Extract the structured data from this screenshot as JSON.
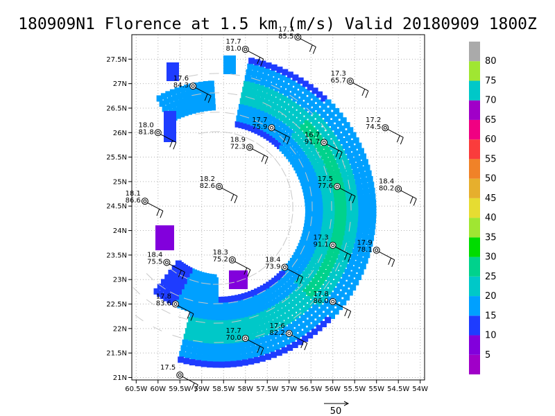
{
  "title": "180909N1 Florence at 1.5 km (m/s) Valid 20180909  1800Z",
  "map": {
    "lon_range": [
      -60.6,
      -53.9
    ],
    "lat_range": [
      20.95,
      28.0
    ],
    "x_ticks": [
      {
        "lon": -60.5,
        "label": "60.5W"
      },
      {
        "lon": -60.0,
        "label": "60W"
      },
      {
        "lon": -59.5,
        "label": "59.5W"
      },
      {
        "lon": -59.0,
        "label": "59W"
      },
      {
        "lon": -58.5,
        "label": "58.5W"
      },
      {
        "lon": -58.0,
        "label": "58W"
      },
      {
        "lon": -57.5,
        "label": "57.5W"
      },
      {
        "lon": -57.0,
        "label": "57W"
      },
      {
        "lon": -56.5,
        "label": "56.5W"
      },
      {
        "lon": -56.0,
        "label": "56W"
      },
      {
        "lon": -55.5,
        "label": "55.5W"
      },
      {
        "lon": -55.0,
        "label": "55W"
      },
      {
        "lon": -54.5,
        "label": "54.5W"
      },
      {
        "lon": -54.0,
        "label": "54W"
      }
    ],
    "y_ticks": [
      {
        "lat": 21.0,
        "label": "21N"
      },
      {
        "lat": 21.5,
        "label": "21.5N"
      },
      {
        "lat": 22.0,
        "label": "22N"
      },
      {
        "lat": 22.5,
        "label": "22.5N"
      },
      {
        "lat": 23.0,
        "label": "23N"
      },
      {
        "lat": 23.5,
        "label": "23.5N"
      },
      {
        "lat": 24.0,
        "label": "24N"
      },
      {
        "lat": 24.5,
        "label": "24.5N"
      },
      {
        "lat": 25.0,
        "label": "25N"
      },
      {
        "lat": 25.5,
        "label": "25.5N"
      },
      {
        "lat": 26.0,
        "label": "26N"
      },
      {
        "lat": 26.5,
        "label": "26.5N"
      },
      {
        "lat": 27.0,
        "label": "27N"
      },
      {
        "lat": 27.5,
        "label": "27.5N"
      }
    ]
  },
  "colorbar": {
    "min": 0,
    "max": 85,
    "bins": [
      {
        "from": 0,
        "to": 5,
        "color": "#a000c8"
      },
      {
        "from": 5,
        "to": 10,
        "color": "#8200dc"
      },
      {
        "from": 10,
        "to": 15,
        "color": "#1e3cff"
      },
      {
        "from": 15,
        "to": 20,
        "color": "#00a0ff"
      },
      {
        "from": 20,
        "to": 25,
        "color": "#00c8c8"
      },
      {
        "from": 25,
        "to": 30,
        "color": "#00d28c"
      },
      {
        "from": 30,
        "to": 35,
        "color": "#00dc00"
      },
      {
        "from": 35,
        "to": 40,
        "color": "#a0e632"
      },
      {
        "from": 40,
        "to": 45,
        "color": "#e6dc32"
      },
      {
        "from": 45,
        "to": 50,
        "color": "#e6af2d"
      },
      {
        "from": 50,
        "to": 55,
        "color": "#f08228"
      },
      {
        "from": 55,
        "to": 60,
        "color": "#fa3c3c"
      },
      {
        "from": 60,
        "to": 65,
        "color": "#f00082"
      },
      {
        "from": 65,
        "to": 70,
        "color": "#a000c8"
      },
      {
        "from": 70,
        "to": 75,
        "color": "#00c8c8"
      },
      {
        "from": 75,
        "to": 80,
        "color": "#a0e632"
      },
      {
        "from": 80,
        "to": 85,
        "color": "#aaaaaa"
      }
    ],
    "labels": [
      "5",
      "10",
      "15",
      "20",
      "25",
      "30",
      "35",
      "40",
      "45",
      "50",
      "55",
      "60",
      "65",
      "70",
      "75",
      "80"
    ]
  },
  "legend_vector_label": "50",
  "stations": [
    {
      "lon": -56.8,
      "lat": 27.95,
      "t": "17.7",
      "p": "85.5"
    },
    {
      "lon": -58.0,
      "lat": 27.7,
      "t": "17.7",
      "p": "81.0"
    },
    {
      "lon": -55.6,
      "lat": 27.05,
      "t": "17.3",
      "p": "65.7"
    },
    {
      "lon": -59.2,
      "lat": 26.95,
      "t": "17.6",
      "p": "84.3"
    },
    {
      "lon": -57.4,
      "lat": 26.1,
      "t": "17.7",
      "p": "75.9"
    },
    {
      "lon": -54.8,
      "lat": 26.1,
      "t": "17.2",
      "p": "74.5"
    },
    {
      "lon": -60.0,
      "lat": 26.0,
      "t": "18.0",
      "p": "81.8"
    },
    {
      "lon": -56.2,
      "lat": 25.8,
      "t": "16.7",
      "p": "91.7"
    },
    {
      "lon": -57.9,
      "lat": 25.7,
      "t": "18.9",
      "p": "72.3"
    },
    {
      "lon": -58.6,
      "lat": 24.9,
      "t": "18.2",
      "p": "82.6"
    },
    {
      "lon": -55.9,
      "lat": 24.9,
      "t": "17.5",
      "p": "77.6"
    },
    {
      "lon": -54.5,
      "lat": 24.85,
      "t": "18.4",
      "p": "80.2"
    },
    {
      "lon": -60.3,
      "lat": 24.6,
      "t": "18.1",
      "p": "86.6"
    },
    {
      "lon": -56.0,
      "lat": 23.7,
      "t": "17.3",
      "p": "91.1"
    },
    {
      "lon": -55.0,
      "lat": 23.6,
      "t": "17.9",
      "p": "78.1"
    },
    {
      "lon": -58.3,
      "lat": 23.4,
      "t": "18.3",
      "p": "75.2"
    },
    {
      "lon": -59.8,
      "lat": 23.35,
      "t": "18.4",
      "p": "75.5"
    },
    {
      "lon": -57.1,
      "lat": 23.25,
      "t": "18.4",
      "p": "73.9"
    },
    {
      "lon": -56.0,
      "lat": 22.55,
      "t": "17.8",
      "p": "86.0"
    },
    {
      "lon": -59.6,
      "lat": 22.5,
      "t": "17.8",
      "p": "83.6"
    },
    {
      "lon": -57.0,
      "lat": 21.9,
      "t": "17.6",
      "p": "82.2"
    },
    {
      "lon": -58.0,
      "lat": 21.8,
      "t": "17.7",
      "p": "70.0"
    },
    {
      "lon": -59.5,
      "lat": 21.05,
      "t": "17.5",
      "p": ""
    }
  ]
}
